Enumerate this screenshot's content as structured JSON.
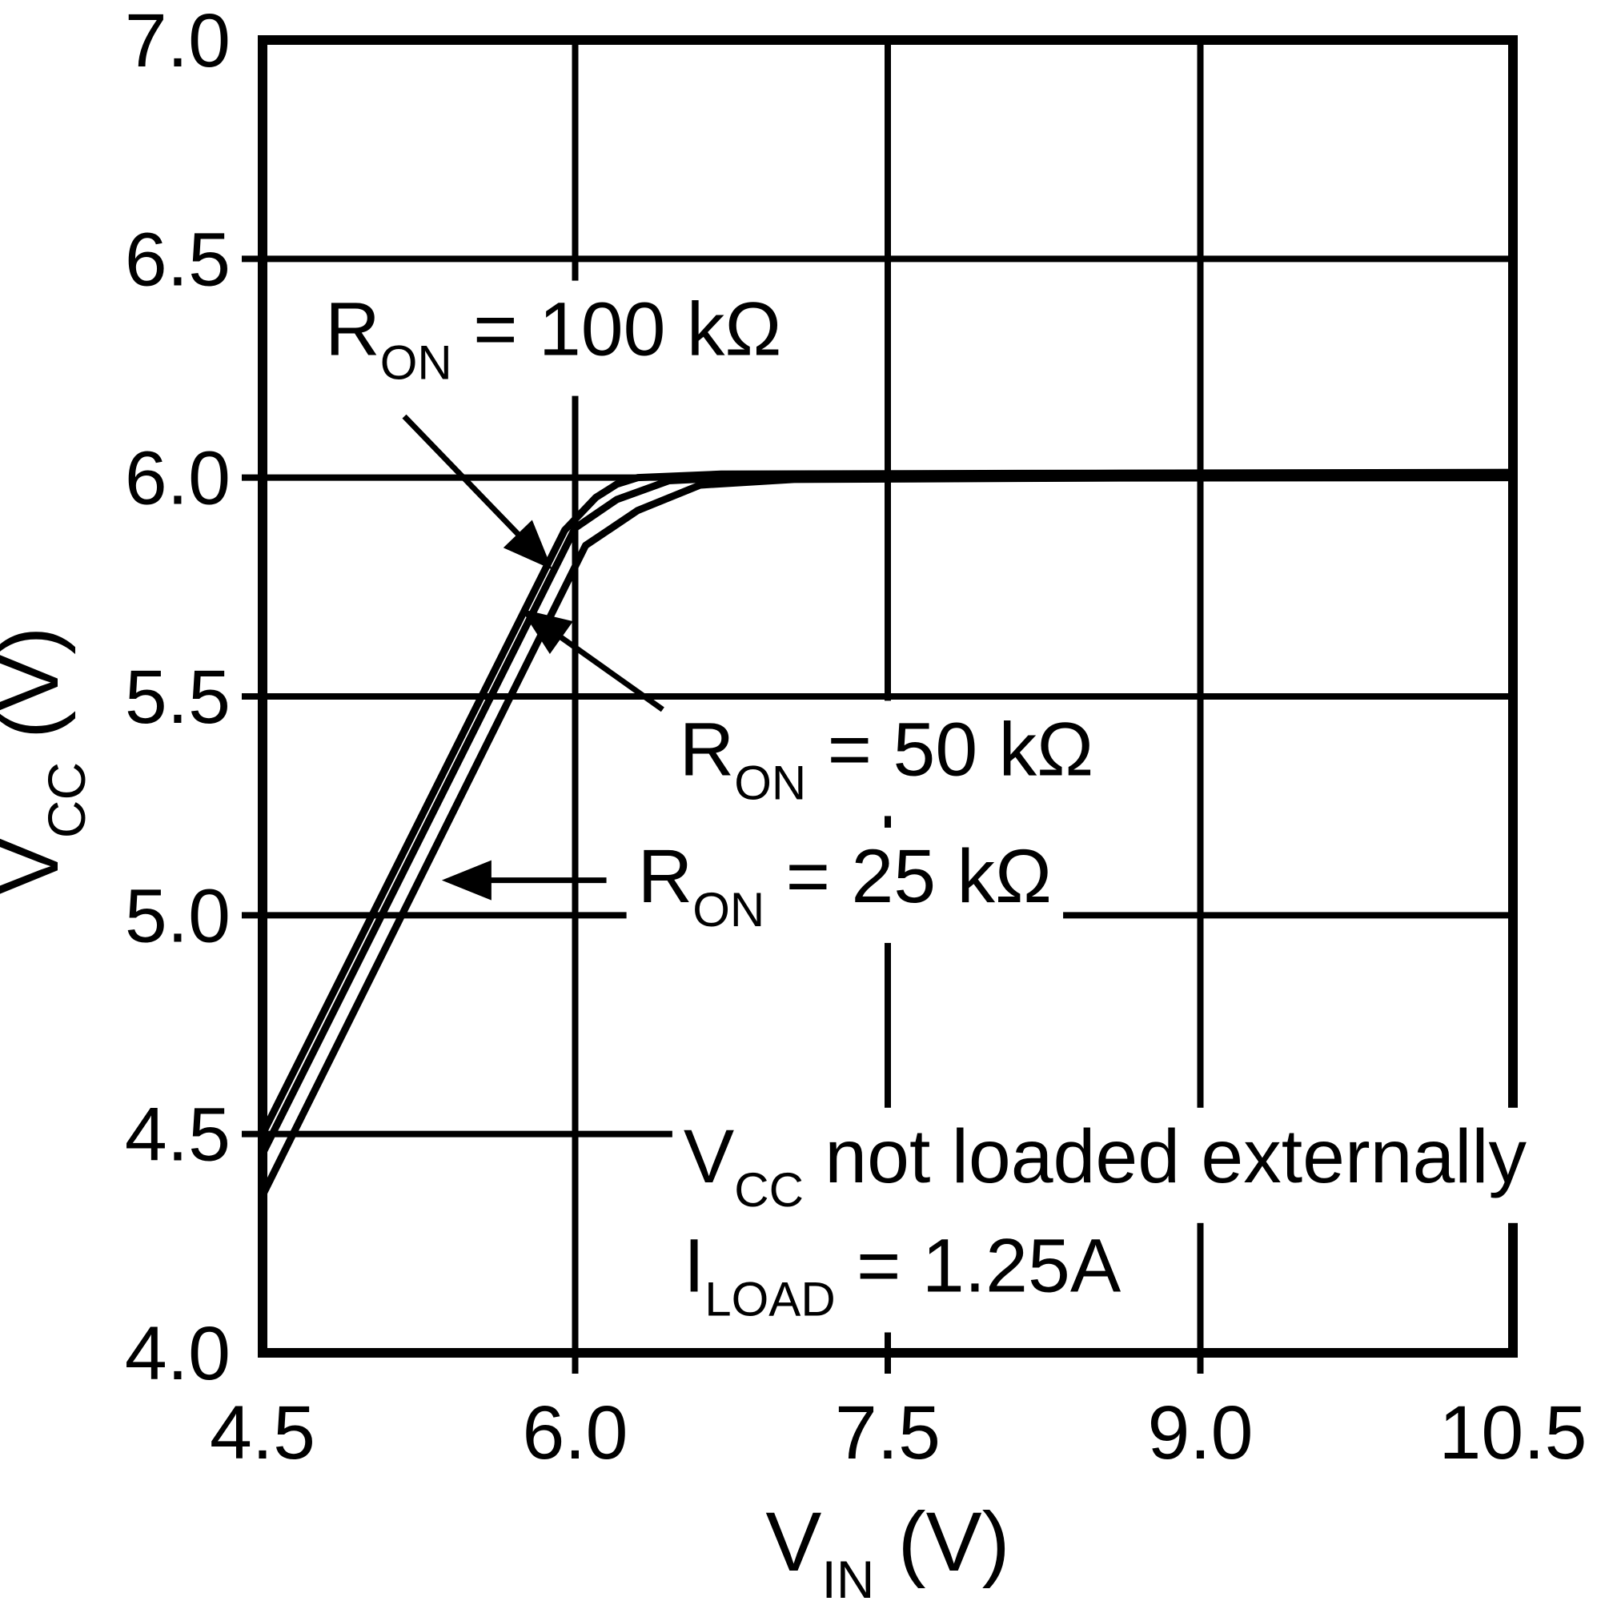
{
  "chart_data": {
    "type": "line",
    "title": "",
    "xlabel_parts": [
      {
        "t": "V"
      },
      {
        "t": "IN",
        "sub": true
      },
      {
        "t": " (V)"
      }
    ],
    "ylabel_parts": [
      {
        "t": "V"
      },
      {
        "t": "CC",
        "sub": true
      },
      {
        "t": " (V)"
      }
    ],
    "xlim": [
      4.5,
      10.5
    ],
    "ylim": [
      4.0,
      7.0
    ],
    "grid": true,
    "x_ticks": [
      {
        "v": 4.5,
        "label": "4.5"
      },
      {
        "v": 6.0,
        "label": "6.0"
      },
      {
        "v": 7.5,
        "label": "7.5"
      },
      {
        "v": 9.0,
        "label": "9.0"
      },
      {
        "v": 10.5,
        "label": "10.5"
      }
    ],
    "y_ticks": [
      {
        "v": 4.0,
        "label": "4.0"
      },
      {
        "v": 4.5,
        "label": "4.5"
      },
      {
        "v": 5.0,
        "label": "5.0"
      },
      {
        "v": 5.5,
        "label": "5.5"
      },
      {
        "v": 6.0,
        "label": "6.0"
      },
      {
        "v": 6.5,
        "label": "6.5"
      },
      {
        "v": 7.0,
        "label": "7.0"
      }
    ],
    "series": [
      {
        "name": "RON = 100 kΩ",
        "points": [
          [
            4.5,
            4.5
          ],
          [
            5.95,
            5.88
          ],
          [
            6.1,
            5.955
          ],
          [
            6.2,
            5.985
          ],
          [
            6.3,
            6.0
          ],
          [
            6.7,
            6.008
          ],
          [
            8.5,
            6.01
          ],
          [
            10.5,
            6.012
          ]
        ]
      },
      {
        "name": "RON = 50 kΩ",
        "points": [
          [
            4.5,
            4.455
          ],
          [
            6.0,
            5.885
          ],
          [
            6.2,
            5.95
          ],
          [
            6.45,
            5.993
          ],
          [
            6.85,
            6.002
          ],
          [
            8.5,
            6.005
          ],
          [
            10.5,
            6.006
          ]
        ]
      },
      {
        "name": "RON = 25 kΩ",
        "points": [
          [
            4.5,
            4.36
          ],
          [
            6.05,
            5.845
          ],
          [
            6.3,
            5.925
          ],
          [
            6.6,
            5.983
          ],
          [
            7.05,
            5.996
          ],
          [
            8.5,
            5.999
          ],
          [
            10.5,
            6.0
          ]
        ]
      }
    ],
    "annotations": [
      {
        "id": "ron-100k",
        "parts": [
          {
            "t": "R"
          },
          {
            "t": "ON",
            "sub": true
          },
          {
            "t": " = 100 kΩ"
          }
        ],
        "x": 4.8,
        "y": 6.28,
        "arrow": {
          "from": [
            5.18,
            6.14
          ],
          "to": [
            5.89,
            5.79
          ]
        }
      },
      {
        "id": "ron-50k",
        "parts": [
          {
            "t": "R"
          },
          {
            "t": "ON",
            "sub": true
          },
          {
            "t": " = 50 kΩ"
          }
        ],
        "x": 6.5,
        "y": 5.32,
        "arrow": {
          "from": [
            6.42,
            5.47
          ],
          "to": [
            5.74,
            5.7
          ]
        }
      },
      {
        "id": "ron-25k",
        "parts": [
          {
            "t": "R"
          },
          {
            "t": "ON",
            "sub": true
          },
          {
            "t": " = 25 kΩ"
          }
        ],
        "x": 6.3,
        "y": 5.03,
        "arrow": {
          "from": [
            6.15,
            5.08
          ],
          "to": [
            5.36,
            5.08
          ]
        }
      }
    ],
    "notes": [
      {
        "id": "note-vcc-load",
        "parts": [
          {
            "t": "V"
          },
          {
            "t": "CC",
            "sub": true
          },
          {
            "t": " not loaded externally"
          }
        ],
        "x": 6.52,
        "y": 4.39
      },
      {
        "id": "note-iload",
        "parts": [
          {
            "t": "I"
          },
          {
            "t": "LOAD",
            "sub": true
          },
          {
            "t": " = 1.25A"
          }
        ],
        "x": 6.52,
        "y": 4.14
      }
    ],
    "legend_position": "none"
  },
  "colors": {
    "ink": "#000000",
    "background": "#ffffff"
  }
}
